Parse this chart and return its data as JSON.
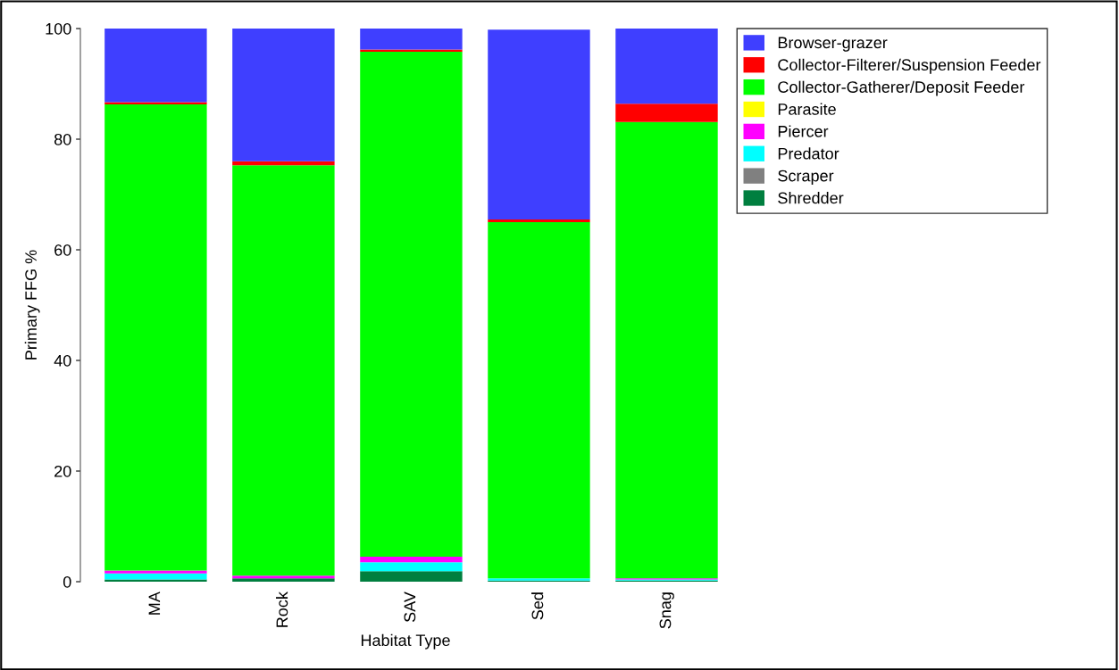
{
  "chart_data": {
    "type": "bar",
    "stacked": true,
    "xlabel": "Habitat Type",
    "ylabel": "Primary FFG %",
    "categories": [
      "MA",
      "Rock",
      "SAV",
      "Sed",
      "Snag"
    ],
    "series": [
      {
        "name": "Shredder",
        "color": "#007f3f",
        "values": [
          0.4,
          0.6,
          1.9,
          0.2,
          0.2
        ]
      },
      {
        "name": "Scraper",
        "color": "#808080",
        "values": [
          0,
          0,
          0,
          0,
          0
        ]
      },
      {
        "name": "Predator",
        "color": "#00ffff",
        "values": [
          1.1,
          0,
          1.6,
          0.4,
          0.2
        ]
      },
      {
        "name": "Piercer",
        "color": "#ff00ff",
        "values": [
          0.5,
          0.5,
          1.0,
          0,
          0.2
        ]
      },
      {
        "name": "Parasite",
        "color": "#ffff00",
        "values": [
          0,
          0,
          0,
          0,
          0
        ]
      },
      {
        "name": "Collector-Gatherer/Deposit Feeder",
        "color": "#00ff00",
        "values": [
          84.3,
          74.2,
          91.3,
          64.4,
          82.5
        ]
      },
      {
        "name": "Collector-Filterer/Suspension Feeder",
        "color": "#ff0000",
        "values": [
          0.4,
          0.7,
          0.4,
          0.5,
          3.3
        ]
      },
      {
        "name": "Browser-grazer",
        "color": "#3f3fff",
        "values": [
          13.3,
          24.0,
          3.8,
          34.3,
          13.7
        ]
      }
    ],
    "ylim": [
      0,
      100
    ],
    "yticks": [
      0,
      20,
      40,
      60,
      80,
      100
    ],
    "grid": false,
    "legend": "top right"
  }
}
